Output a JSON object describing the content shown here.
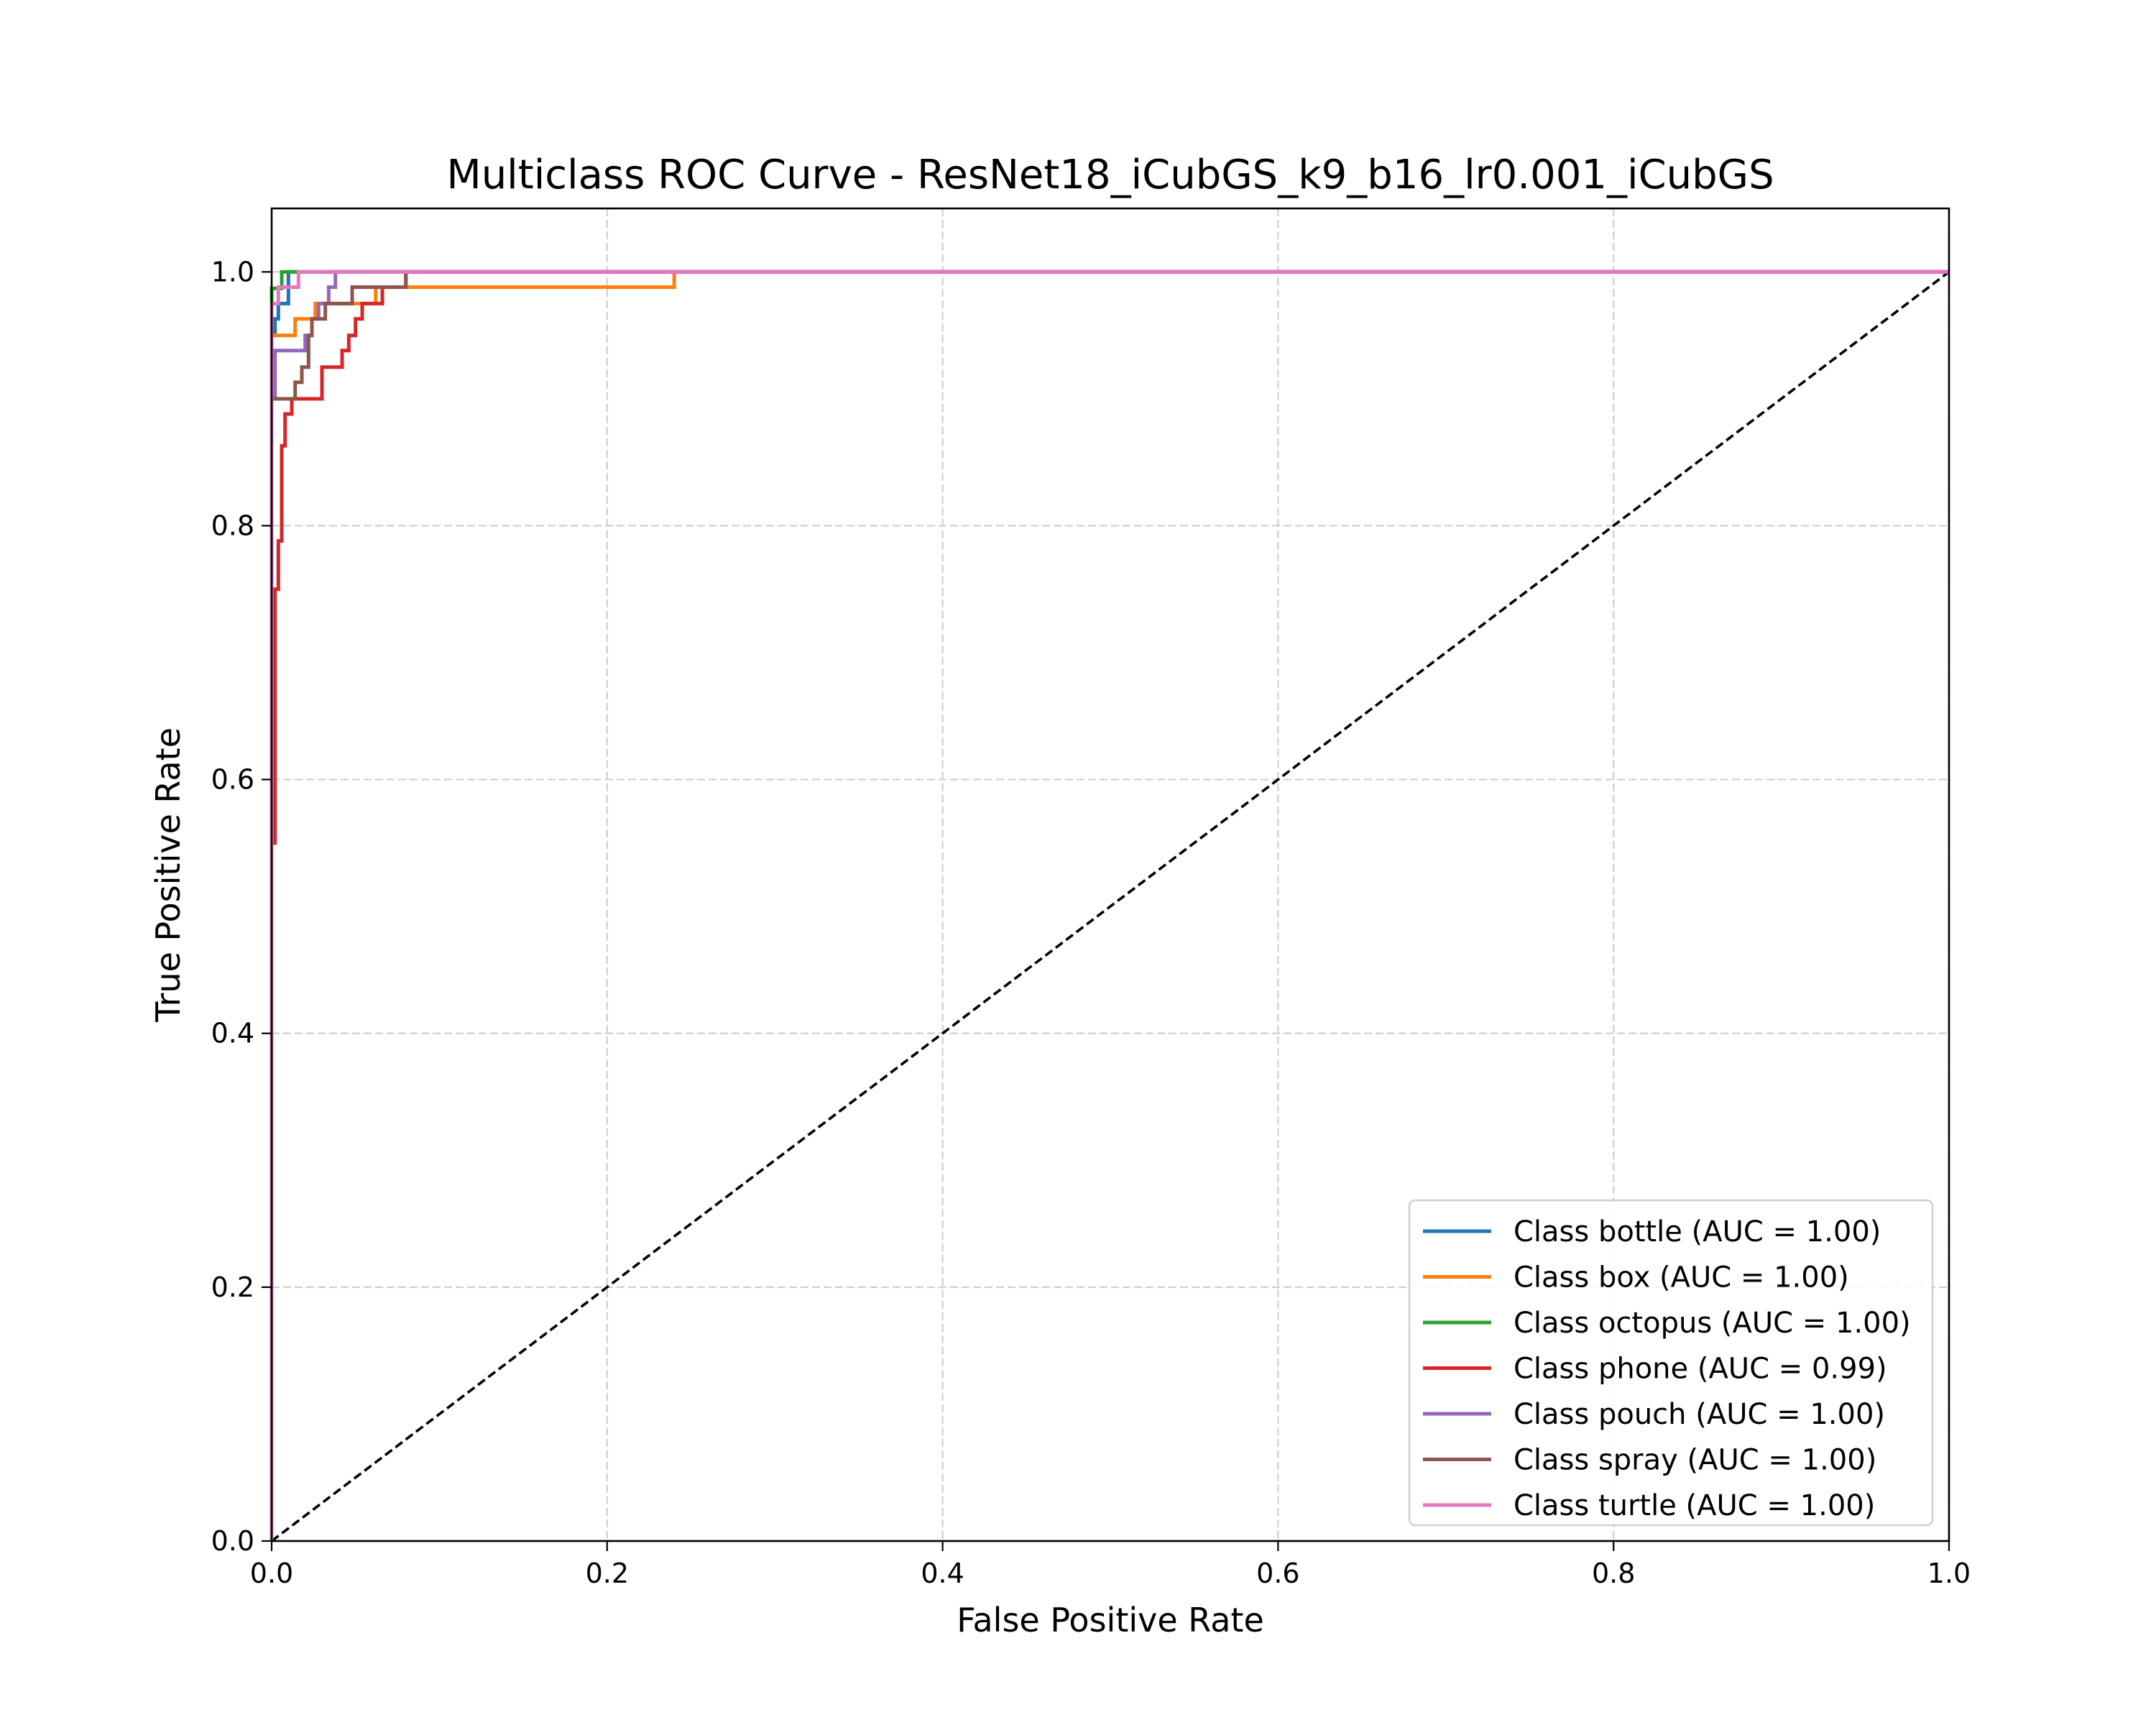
{
  "chart_data": {
    "type": "line",
    "title": "Multiclass ROC Curve - ResNet18_iCubGS_k9_b16_lr0.001_iCubGS",
    "xlabel": "False Positive Rate",
    "ylabel": "True Positive Rate",
    "xlim": [
      0.0,
      1.0
    ],
    "ylim": [
      0.0,
      1.05
    ],
    "xticks": [
      "0.0",
      "0.2",
      "0.4",
      "0.6",
      "0.8",
      "1.0"
    ],
    "yticks": [
      "0.0",
      "0.2",
      "0.4",
      "0.6",
      "0.8",
      "1.0"
    ],
    "grid": true,
    "legend_position": "lower-right",
    "series": [
      {
        "name": "Class bottle (AUC = 1.00)",
        "color": "#1f77b4",
        "x": [
          0.0,
          0.0,
          0.002,
          0.002,
          0.004,
          0.004,
          0.01,
          0.01,
          1.0
        ],
        "y": [
          0.0,
          0.95,
          0.95,
          0.963,
          0.963,
          0.975,
          0.975,
          1.0,
          1.0
        ]
      },
      {
        "name": "Class box (AUC = 1.00)",
        "color": "#ff7f0e",
        "x": [
          0.0,
          0.0,
          0.014,
          0.014,
          0.026,
          0.026,
          0.038,
          0.038,
          0.062,
          0.062,
          0.068,
          0.068,
          0.24,
          0.24,
          1.0
        ],
        "y": [
          0.0,
          0.95,
          0.95,
          0.963,
          0.963,
          0.975,
          0.975,
          0.975,
          0.975,
          0.988,
          0.988,
          0.988,
          0.988,
          1.0,
          1.0
        ]
      },
      {
        "name": "Class octopus (AUC = 1.00)",
        "color": "#2ca02c",
        "x": [
          0.0,
          0.0,
          0.006,
          0.006,
          0.02,
          0.02,
          1.0
        ],
        "y": [
          0.0,
          0.987,
          0.987,
          1.0,
          1.0,
          1.0,
          1.0
        ]
      },
      {
        "name": "Class phone (AUC = 0.99)",
        "color": "#d62728",
        "x": [
          0.0,
          0.0,
          0.002,
          0.002,
          0.004,
          0.004,
          0.006,
          0.006,
          0.008,
          0.008,
          0.012,
          0.012,
          0.016,
          0.016,
          0.03,
          0.03,
          0.042,
          0.042,
          0.046,
          0.046,
          0.05,
          0.05,
          0.054,
          0.054,
          0.066,
          0.066,
          0.08,
          0.08,
          1.0
        ],
        "y": [
          0.0,
          0.55,
          0.55,
          0.75,
          0.75,
          0.788,
          0.788,
          0.863,
          0.863,
          0.888,
          0.888,
          0.9,
          0.9,
          0.9,
          0.9,
          0.925,
          0.925,
          0.938,
          0.938,
          0.95,
          0.95,
          0.963,
          0.963,
          0.975,
          0.975,
          0.988,
          0.988,
          1.0,
          1.0
        ]
      },
      {
        "name": "Class pouch (AUC = 1.00)",
        "color": "#9467bd",
        "x": [
          0.0,
          0.0,
          0.002,
          0.002,
          0.02,
          0.02,
          0.024,
          0.024,
          0.028,
          0.028,
          0.034,
          0.034,
          0.038,
          0.038,
          1.0
        ],
        "y": [
          0.0,
          0.9,
          0.9,
          0.938,
          0.938,
          0.95,
          0.95,
          0.963,
          0.963,
          0.975,
          0.975,
          0.988,
          0.988,
          1.0,
          1.0
        ]
      },
      {
        "name": "Class spray (AUC = 1.00)",
        "color": "#8c564b",
        "x": [
          0.0,
          0.0,
          0.014,
          0.014,
          0.018,
          0.018,
          0.022,
          0.022,
          0.024,
          0.024,
          0.032,
          0.032,
          0.048,
          0.048,
          0.08,
          0.08,
          1.0
        ],
        "y": [
          0.0,
          0.9,
          0.9,
          0.913,
          0.913,
          0.925,
          0.925,
          0.95,
          0.95,
          0.963,
          0.963,
          0.975,
          0.975,
          0.988,
          0.988,
          1.0,
          1.0
        ]
      },
      {
        "name": "Class turtle (AUC = 1.00)",
        "color": "#e377c2",
        "x": [
          0.0,
          0.0,
          0.004,
          0.004,
          0.016,
          0.016,
          1.0
        ],
        "y": [
          0.0,
          0.975,
          0.975,
          0.988,
          0.988,
          1.0,
          1.0
        ]
      }
    ],
    "reference_line": {
      "x": [
        0.0,
        1.0
      ],
      "y": [
        0.0,
        1.0
      ],
      "color": "#000000",
      "style": "dashed"
    }
  }
}
